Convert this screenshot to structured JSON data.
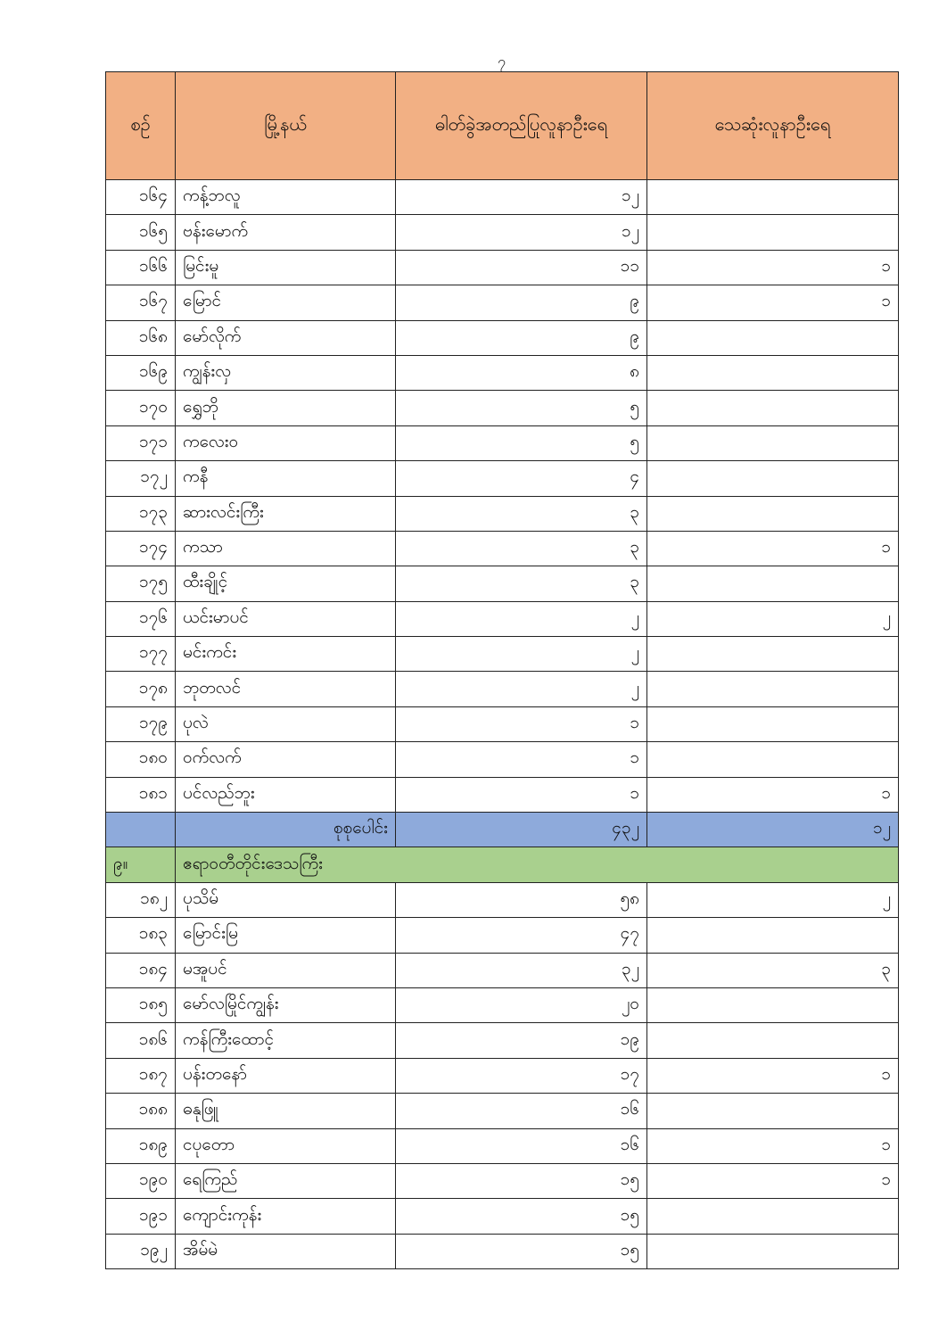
{
  "page_number": "၇",
  "table": {
    "headers": [
      "စဉ်",
      "မြို့နယ်",
      "ဓါတ်ခွဲအတည်ပြုလူနာဦးရေ",
      "သေဆုံးလူနာဦးရေ"
    ],
    "rows_part1": [
      [
        "၁၆၄",
        "ကန့်ဘလူ",
        "၁၂",
        ""
      ],
      [
        "၁၆၅",
        "ဗန်းမောက်",
        "၁၂",
        ""
      ],
      [
        "၁၆၆",
        "မြင်းမူ",
        "၁၁",
        "၁"
      ],
      [
        "၁၆၇",
        "မြောင်",
        "၉",
        "၁"
      ],
      [
        "၁၆၈",
        "မော်လိုက်",
        "၉",
        ""
      ],
      [
        "၁၆၉",
        "ကျွန်းလှ",
        "၈",
        ""
      ],
      [
        "၁၇၀",
        "ရွှေဘို",
        "၅",
        ""
      ],
      [
        "၁၇၁",
        "ကလေးဝ",
        "၅",
        ""
      ],
      [
        "၁၇၂",
        "ကနီ",
        "၄",
        ""
      ],
      [
        "၁၇၃",
        "ဆားလင်းကြီး",
        "၃",
        ""
      ],
      [
        "၁၇၄",
        "ကသာ",
        "၃",
        "၁"
      ],
      [
        "၁၇၅",
        "ထီးချိုင့်",
        "၃",
        ""
      ],
      [
        "၁၇၆",
        "ယင်းမာပင်",
        "၂",
        "၂"
      ],
      [
        "၁၇၇",
        "မင်းကင်း",
        "၂",
        ""
      ],
      [
        "၁၇၈",
        "ဘုတလင်",
        "၂",
        ""
      ],
      [
        "၁၇၉",
        "ပုလဲ",
        "၁",
        ""
      ],
      [
        "၁၈၀",
        "ဝက်လက်",
        "၁",
        ""
      ],
      [
        "၁၈၁",
        "ပင်လည်ဘူး",
        "၁",
        "၁"
      ]
    ],
    "total": {
      "label": "စုစုပေါင်း",
      "confirmed": "၄၃၂",
      "deaths": "၁၂"
    },
    "section": {
      "number": "၉။",
      "name": "ဧရာဝတီတိုင်းဒေသကြီး"
    },
    "rows_part2": [
      [
        "၁၈၂",
        "ပုသိမ်",
        "၅၈",
        "၂"
      ],
      [
        "၁၈၃",
        "မြောင်းမြ",
        "၄၇",
        ""
      ],
      [
        "၁၈၄",
        "မအူပင်",
        "၃၂",
        "၃"
      ],
      [
        "၁၈၅",
        "မော်လမြိုင်ကျွန်း",
        "၂၀",
        ""
      ],
      [
        "၁၈၆",
        "ကန်ကြီးထောင့်",
        "၁၉",
        ""
      ],
      [
        "၁၈၇",
        "ပန်းတနော်",
        "၁၇",
        "၁"
      ],
      [
        "၁၈၈",
        "ဓနုဖြူ",
        "၁၆",
        ""
      ],
      [
        "၁၈၉",
        "ငပုတော",
        "၁၆",
        "၁"
      ],
      [
        "၁၉၀",
        "ရေကြည်",
        "၁၅",
        "၁"
      ],
      [
        "၁၉၁",
        "ကျောင်းကုန်း",
        "၁၅",
        ""
      ],
      [
        "၁၉၂",
        "အိမ်မဲ",
        "၁၅",
        ""
      ]
    ],
    "colors": {
      "header": "#f2b084",
      "total": "#8eaadb",
      "section": "#a9d08e"
    }
  }
}
